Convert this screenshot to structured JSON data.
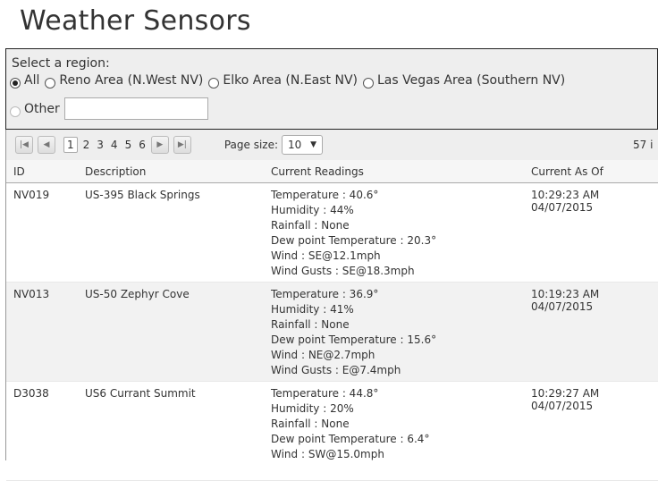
{
  "title": "Weather Sensors",
  "region": {
    "label": "Select a region:",
    "options": [
      "All",
      "Reno Area (N.West NV)",
      "Elko Area (N.East NV)",
      "Las Vegas Area (Southern NV)"
    ],
    "selected": "All",
    "other_label": "Other",
    "other_value": ""
  },
  "pager": {
    "pages": [
      "1",
      "2",
      "3",
      "4",
      "5",
      "6"
    ],
    "current": "1",
    "page_size_label": "Page size:",
    "page_size": "10",
    "count": "57 i"
  },
  "columns": [
    "ID",
    "Description",
    "Current Readings",
    "Current As Of"
  ],
  "rows": [
    {
      "id": "NV019",
      "desc": "US-395 Black Springs",
      "readings": [
        "Temperature : 40.6°",
        "Humidity : 44%",
        "Rainfall : None",
        "Dew point Temperature : 20.3°",
        "Wind : SE@12.1mph",
        "Wind Gusts : SE@18.3mph"
      ],
      "asof": "10:29:23 AM 04/07/2015"
    },
    {
      "id": "NV013",
      "desc": "US-50 Zephyr Cove",
      "readings": [
        "Temperature : 36.9°",
        "Humidity : 41%",
        "Rainfall : None",
        "Dew point Temperature : 15.6°",
        "Wind : NE@2.7mph",
        "Wind Gusts : E@7.4mph"
      ],
      "asof": "10:19:23 AM 04/07/2015"
    },
    {
      "id": "D3038",
      "desc": "US6 Currant Summit",
      "readings": [
        "Temperature : 44.8°",
        "Humidity : 20%",
        "Rainfall : None",
        "Dew point Temperature : 6.4°",
        "Wind : SW@15.0mph"
      ],
      "asof": "10:29:27 AM 04/07/2015"
    }
  ]
}
